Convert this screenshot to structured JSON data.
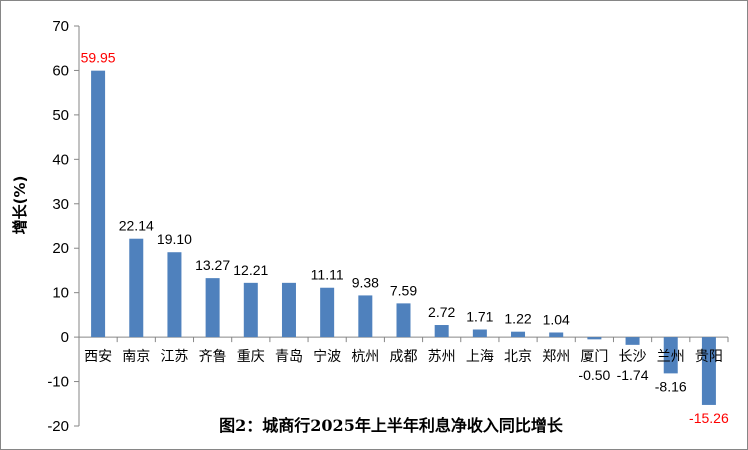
{
  "chart_data": {
    "type": "bar",
    "title": "图2：城商行2025年上半年利息净收入同比增长",
    "ylabel": "增长(%)",
    "xlabel": "",
    "ylim": [
      -20,
      70
    ],
    "yticks": [
      -20,
      -10,
      0,
      10,
      20,
      30,
      40,
      50,
      60,
      70
    ],
    "grid": false,
    "legend": "none",
    "bar_color": "#4F81BD",
    "highlight_label_color": "#FF0000",
    "categories": [
      "西安",
      "南京",
      "江苏",
      "齐鲁",
      "重庆",
      "青岛",
      "宁波",
      "杭州",
      "成都",
      "苏州",
      "上海",
      "北京",
      "郑州",
      "厦门",
      "长沙",
      "兰州",
      "贵阳"
    ],
    "values": [
      59.95,
      22.14,
      19.1,
      13.27,
      12.21,
      null,
      11.11,
      9.38,
      7.59,
      2.72,
      1.71,
      1.22,
      1.04,
      -0.5,
      -1.74,
      -8.16,
      -15.26
    ],
    "bar_values": [
      59.95,
      22.14,
      19.1,
      13.27,
      12.21,
      12.21,
      11.11,
      9.38,
      7.59,
      2.72,
      1.71,
      1.22,
      1.04,
      -0.5,
      -1.74,
      -8.16,
      -15.26
    ],
    "data_labels": [
      "59.95",
      "22.14",
      "19.10",
      "13.27",
      "12.21",
      "",
      "11.11",
      "9.38",
      "7.59",
      "2.72",
      "1.71",
      "1.22",
      "1.04",
      "-0.50",
      "-1.74",
      "-8.16",
      "-15.26"
    ],
    "highlighted_labels": [
      0,
      16
    ]
  }
}
